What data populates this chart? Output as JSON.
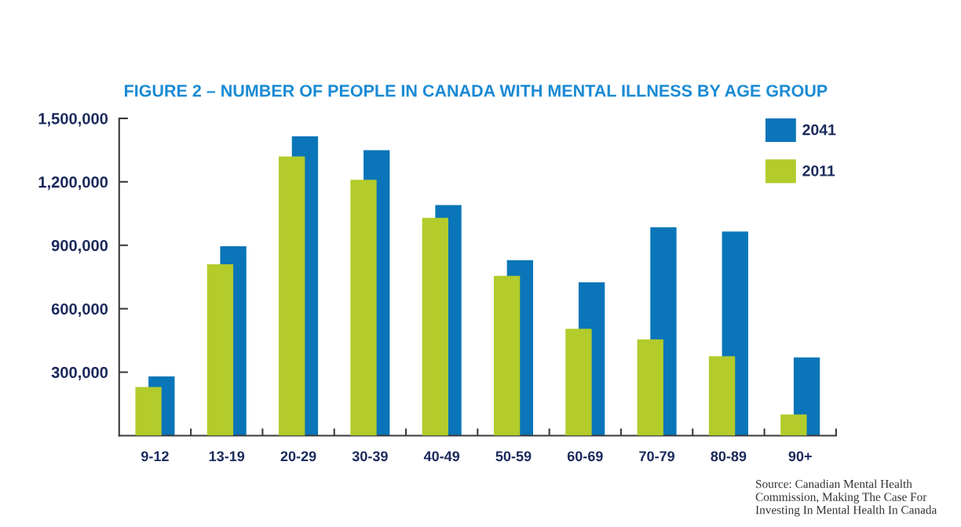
{
  "chart_data": {
    "type": "bar",
    "title": "FIGURE 2 – NUMBER OF PEOPLE IN CANADA WITH MENTAL ILLNESS BY AGE GROUP",
    "categories": [
      "9-12",
      "13-19",
      "20-29",
      "30-39",
      "40-49",
      "50-59",
      "60-69",
      "70-79",
      "80-89",
      "90+"
    ],
    "series": [
      {
        "name": "2041",
        "color": "#0a75b9",
        "values": [
          280000,
          895000,
          1415000,
          1350000,
          1090000,
          830000,
          725000,
          985000,
          965000,
          370000
        ]
      },
      {
        "name": "2011",
        "color": "#b3cb2b",
        "values": [
          230000,
          810000,
          1320000,
          1210000,
          1030000,
          755000,
          505000,
          455000,
          375000,
          100000
        ]
      }
    ],
    "ylim": [
      0,
      1500000
    ],
    "yticks": [
      {
        "value": 300000,
        "label": "300,000"
      },
      {
        "value": 600000,
        "label": "600,000"
      },
      {
        "value": 900000,
        "label": "900,000"
      },
      {
        "value": 1200000,
        "label": "1,200,000"
      },
      {
        "value": 1500000,
        "label": "1,500,000"
      }
    ],
    "legend": "top right",
    "annotations": [
      "Source: Canadian Mental Health Commission, Making The Case For Investing In Mental Health In Canada"
    ]
  }
}
